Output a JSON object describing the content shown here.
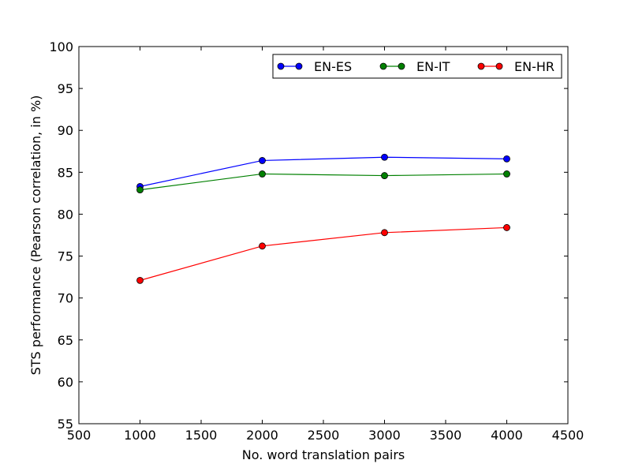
{
  "chart_data": {
    "type": "line",
    "title": "",
    "xlabel": "No. word translation pairs",
    "ylabel": "STS performance (Pearson correlation, in %)",
    "xlim": [
      500,
      4500
    ],
    "ylim": [
      55,
      100
    ],
    "xticks": [
      500,
      1000,
      1500,
      2000,
      2500,
      3000,
      3500,
      4000,
      4500
    ],
    "yticks": [
      55,
      60,
      65,
      70,
      75,
      80,
      85,
      90,
      95,
      100
    ],
    "x": [
      1000,
      2000,
      3000,
      4000
    ],
    "grid": false,
    "legend_position": "top-right",
    "series": [
      {
        "name": "EN-ES",
        "color": "#0000ff",
        "values": [
          83.3,
          86.4,
          86.8,
          86.6
        ]
      },
      {
        "name": "EN-IT",
        "color": "#008000",
        "values": [
          82.9,
          84.8,
          84.6,
          84.8
        ]
      },
      {
        "name": "EN-HR",
        "color": "#ff0000",
        "values": [
          72.1,
          76.2,
          77.8,
          78.4
        ]
      }
    ]
  }
}
